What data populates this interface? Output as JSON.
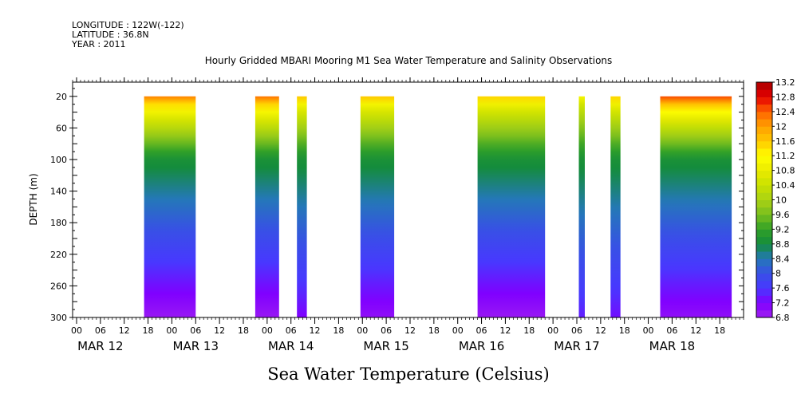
{
  "header": {
    "longitude": "LONGITUDE : 122W(-122)",
    "latitude": "LATITUDE : 36.8N",
    "year": "YEAR : 2011"
  },
  "title": "Hourly Gridded MBARI Mooring M1 Sea Water Temperature and Salinity Observations",
  "variable_label": "Sea Water Temperature (Celsius)",
  "chart_data": {
    "type": "heatmap",
    "title": "Hourly Gridded MBARI Mooring M1 Sea Water Temperature and Salinity Observations",
    "xlabel": "",
    "ylabel": "DEPTH (m)",
    "colorbar_label": "Sea Water Temperature (Celsius)",
    "x_axis": {
      "type": "time",
      "start": "2011-03-11T23:00",
      "end": "2011-03-19T00:00",
      "hour_tick_labels": [
        "00",
        "06",
        "12",
        "18"
      ],
      "day_labels": [
        {
          "label": "MAR 12",
          "date": "2011-03-12"
        },
        {
          "label": "MAR 13",
          "date": "2011-03-13"
        },
        {
          "label": "MAR 14",
          "date": "2011-03-14"
        },
        {
          "label": "MAR 15",
          "date": "2011-03-15"
        },
        {
          "label": "MAR 16",
          "date": "2011-03-16"
        },
        {
          "label": "MAR 17",
          "date": "2011-03-17"
        },
        {
          "label": "MAR 18",
          "date": "2011-03-18"
        }
      ]
    },
    "y_axis": {
      "range": [
        300,
        2
      ],
      "inverted": true,
      "tick_values": [
        20,
        60,
        100,
        140,
        180,
        220,
        260,
        300
      ]
    },
    "colorbar": {
      "levels": [
        6.8,
        7.0,
        7.2,
        7.4,
        7.6,
        7.8,
        8.0,
        8.2,
        8.4,
        8.6,
        8.8,
        9.0,
        9.2,
        9.4,
        9.6,
        9.8,
        10.0,
        10.2,
        10.4,
        10.6,
        10.8,
        11.0,
        11.2,
        11.4,
        11.6,
        11.8,
        12.0,
        12.2,
        12.4,
        12.6,
        12.8,
        13.0,
        13.2
      ],
      "tick_labels": [
        "6.8",
        "7.2",
        "7.6",
        "8",
        "8.4",
        "8.8",
        "9.2",
        "9.6",
        "10",
        "10.4",
        "10.8",
        "11.2",
        "11.6",
        "12",
        "12.4",
        "12.8",
        "13.2"
      ]
    },
    "data_depth_range": [
      20,
      300
    ],
    "data_segments": [
      {
        "start": "2011-03-12T17:00",
        "end": "2011-03-13T06:00",
        "surface_temp": 12.2,
        "bottom_temp": 6.9
      },
      {
        "start": "2011-03-13T21:00",
        "end": "2011-03-14T03:00",
        "surface_temp": 12.3,
        "bottom_temp": 6.9
      },
      {
        "start": "2011-03-14T07:30",
        "end": "2011-03-14T10:00",
        "surface_temp": 11.6,
        "bottom_temp": 7.2
      },
      {
        "start": "2011-03-14T23:30",
        "end": "2011-03-15T08:00",
        "surface_temp": 11.6,
        "bottom_temp": 7.0
      },
      {
        "start": "2011-03-16T05:00",
        "end": "2011-03-16T22:00",
        "surface_temp": 11.5,
        "bottom_temp": 6.9
      },
      {
        "start": "2011-03-17T06:30",
        "end": "2011-03-17T08:00",
        "surface_temp": 11.0,
        "bottom_temp": 7.4
      },
      {
        "start": "2011-03-17T14:30",
        "end": "2011-03-17T17:00",
        "surface_temp": 11.5,
        "bottom_temp": 7.3
      },
      {
        "start": "2011-03-18T03:00",
        "end": "2011-03-18T21:00",
        "surface_temp": 12.5,
        "bottom_temp": 7.0
      }
    ],
    "grid": false,
    "legend": "colorbar-right"
  }
}
